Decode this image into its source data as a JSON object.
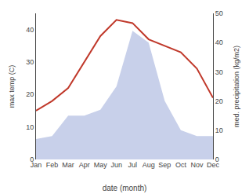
{
  "chart_data": {
    "type": "line",
    "categories": [
      "Jan",
      "Feb",
      "Mar",
      "Apr",
      "May",
      "Jun",
      "Jul",
      "Aug",
      "Sep",
      "Oct",
      "Nov",
      "Dec"
    ],
    "xlabel": "date (month)",
    "ylabel": "max temp (C)",
    "y2label": "med. precipitation (kg/m2)",
    "series": [
      {
        "type": "area",
        "axis": "y2",
        "color": "#c8d0ea",
        "values": [
          7,
          8,
          15,
          15,
          17,
          25,
          44,
          40,
          20,
          10,
          8,
          8
        ]
      },
      {
        "type": "line",
        "color": "#c0392b",
        "values": [
          15,
          18,
          22,
          30,
          38,
          43,
          42,
          37,
          35,
          33,
          28,
          19
        ]
      }
    ],
    "ylim": [
      0,
      45
    ],
    "yticks": [
      0,
      10,
      20,
      30,
      40
    ],
    "y2lim": [
      0,
      50
    ],
    "y2ticks": [
      0,
      10,
      20,
      30,
      40,
      50
    ],
    "grid": false
  }
}
